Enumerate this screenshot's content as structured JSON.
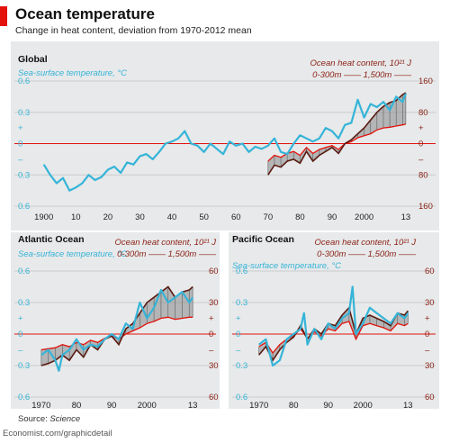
{
  "header": {
    "title": "Ocean temperature",
    "subtitle": "Change in heat content, deviation from 1970-2012 mean"
  },
  "footer": {
    "source_prefix": "Source: ",
    "source_name": "Science",
    "site": "Economist.com/graphicdetail"
  },
  "colors": {
    "accent": "#e3120b",
    "sst_line": "#35b4d8",
    "ohc_1500": "#5a1b12",
    "ohc_300": "#e3120b",
    "band_fill": "#8a8a8a",
    "panel_bg": "#e7e9ea"
  },
  "chart_data": [
    {
      "type": "line",
      "panel_title": "Global",
      "sst_label": "Sea-surface temperature, °C",
      "ohc_label_line1": "Ocean heat content, 10²¹ J",
      "ohc_label_line2a": "0-300m",
      "ohc_label_line2b": "1,500m",
      "xlim": [
        1897,
        2015
      ],
      "ylim_left": [
        -0.6,
        0.6
      ],
      "ylim_right": [
        -160,
        160
      ],
      "left_ticks": [
        "0.6",
        "0.3",
        "+",
        "0",
        "–",
        "0.3",
        "0.6"
      ],
      "right_ticks": [
        "160",
        "80",
        "+",
        "0",
        "–",
        "80",
        "160"
      ],
      "x_ticks": [
        "1900",
        "10",
        "20",
        "30",
        "40",
        "50",
        "60",
        "70",
        "80",
        "90",
        "2000",
        "13"
      ],
      "x_tick_values": [
        1900,
        1910,
        1920,
        1930,
        1940,
        1950,
        1960,
        1970,
        1980,
        1990,
        2000,
        2013
      ],
      "series": [
        {
          "name": "Sea-surface temperature",
          "axis": "left",
          "x": [
            1900,
            1902,
            1904,
            1906,
            1908,
            1910,
            1912,
            1914,
            1916,
            1918,
            1920,
            1922,
            1924,
            1926,
            1928,
            1930,
            1932,
            1934,
            1936,
            1938,
            1940,
            1942,
            1944,
            1946,
            1948,
            1950,
            1952,
            1954,
            1956,
            1958,
            1960,
            1962,
            1964,
            1966,
            1968,
            1970,
            1972,
            1974,
            1976,
            1978,
            1980,
            1982,
            1984,
            1986,
            1988,
            1990,
            1992,
            1994,
            1996,
            1998,
            2000,
            2002,
            2004,
            2006,
            2008,
            2010,
            2012,
            2013
          ],
          "values": [
            -0.2,
            -0.3,
            -0.38,
            -0.33,
            -0.45,
            -0.42,
            -0.38,
            -0.3,
            -0.35,
            -0.32,
            -0.25,
            -0.22,
            -0.28,
            -0.18,
            -0.2,
            -0.12,
            -0.1,
            -0.15,
            -0.08,
            0.0,
            0.02,
            0.05,
            0.12,
            0.0,
            -0.02,
            -0.08,
            0.0,
            -0.05,
            -0.1,
            0.02,
            -0.02,
            0.0,
            -0.08,
            -0.03,
            -0.05,
            -0.02,
            0.05,
            -0.08,
            -0.1,
            0.0,
            0.08,
            0.05,
            0.02,
            0.05,
            0.15,
            0.12,
            0.05,
            0.18,
            0.2,
            0.42,
            0.25,
            0.38,
            0.35,
            0.4,
            0.32,
            0.45,
            0.4,
            0.48
          ]
        },
        {
          "name": "0-300m",
          "axis": "right",
          "x": [
            1970,
            1972,
            1974,
            1976,
            1978,
            1980,
            1982,
            1984,
            1986,
            1988,
            1990,
            1992,
            1994,
            1996,
            1998,
            2000,
            2002,
            2004,
            2006,
            2008,
            2010,
            2012,
            2013
          ],
          "values": [
            -45,
            -30,
            -35,
            -25,
            -20,
            -30,
            -10,
            -25,
            -15,
            -10,
            -5,
            -15,
            0,
            5,
            15,
            20,
            25,
            35,
            40,
            42,
            45,
            48,
            50
          ]
        },
        {
          "name": "1,500m",
          "axis": "right",
          "x": [
            1970,
            1972,
            1974,
            1976,
            1978,
            1980,
            1982,
            1984,
            1986,
            1988,
            1990,
            1992,
            1994,
            1996,
            1998,
            2000,
            2002,
            2004,
            2006,
            2008,
            2010,
            2012,
            2013
          ],
          "values": [
            -80,
            -55,
            -60,
            -45,
            -40,
            -50,
            -20,
            -45,
            -30,
            -20,
            -10,
            -25,
            0,
            10,
            25,
            40,
            60,
            80,
            95,
            105,
            110,
            125,
            130
          ]
        }
      ]
    },
    {
      "type": "line",
      "panel_title": "Atlantic Ocean",
      "sst_label": "Sea-surface temperature, °C",
      "ohc_label_line1": "Ocean heat content, 10²¹ J",
      "ohc_label_line2a": "0-300m",
      "ohc_label_line2b": "1,500m",
      "xlim": [
        1968,
        2015
      ],
      "ylim_left": [
        -0.6,
        0.6
      ],
      "ylim_right": [
        -60,
        60
      ],
      "left_ticks": [
        "0.6",
        "0.3",
        "+",
        "0",
        "–",
        "0.3",
        "0.6"
      ],
      "right_ticks": [
        "60",
        "30",
        "+",
        "0",
        "–",
        "30",
        "60"
      ],
      "x_ticks": [
        "1970",
        "80",
        "90",
        "2000",
        "13"
      ],
      "x_tick_values": [
        1970,
        1980,
        1990,
        2000,
        2013
      ],
      "series": [
        {
          "name": "Sea-surface temperature",
          "axis": "left",
          "x": [
            1970,
            1972,
            1974,
            1975,
            1976,
            1978,
            1980,
            1982,
            1984,
            1986,
            1988,
            1990,
            1992,
            1994,
            1996,
            1998,
            2000,
            2002,
            2004,
            2006,
            2008,
            2010,
            2012,
            2013
          ],
          "values": [
            -0.2,
            -0.15,
            -0.25,
            -0.35,
            -0.2,
            -0.15,
            -0.05,
            -0.15,
            -0.1,
            -0.12,
            -0.05,
            0.0,
            -0.05,
            0.1,
            0.05,
            0.3,
            0.15,
            0.25,
            0.42,
            0.3,
            0.35,
            0.4,
            0.3,
            0.35
          ]
        },
        {
          "name": "0-300m",
          "axis": "right",
          "x": [
            1970,
            1972,
            1974,
            1976,
            1978,
            1980,
            1982,
            1984,
            1986,
            1988,
            1990,
            1992,
            1994,
            1996,
            1998,
            2000,
            2002,
            2004,
            2006,
            2008,
            2010,
            2012,
            2013
          ],
          "values": [
            -15,
            -14,
            -13,
            -10,
            -12,
            -8,
            -10,
            -6,
            -8,
            -4,
            -2,
            -5,
            0,
            3,
            6,
            10,
            12,
            15,
            16,
            14,
            15,
            16,
            16
          ]
        },
        {
          "name": "1,500m",
          "axis": "right",
          "x": [
            1970,
            1972,
            1974,
            1976,
            1978,
            1980,
            1982,
            1984,
            1986,
            1988,
            1990,
            1992,
            1994,
            1996,
            1998,
            2000,
            2002,
            2004,
            2006,
            2008,
            2010,
            2012,
            2013
          ],
          "values": [
            -30,
            -28,
            -25,
            -20,
            -25,
            -15,
            -22,
            -10,
            -15,
            -5,
            -2,
            -10,
            5,
            10,
            20,
            30,
            35,
            40,
            45,
            35,
            40,
            42,
            45
          ]
        }
      ]
    },
    {
      "type": "line",
      "panel_title": "Pacific Ocean",
      "sst_label": "Sea-surface temperature, °C",
      "ohc_label_line1": "Ocean heat content, 10²¹ J",
      "ohc_label_line2a": "0-300m",
      "ohc_label_line2b": "1,500m",
      "xlim": [
        1968,
        2015
      ],
      "ylim_left": [
        -0.6,
        0.6
      ],
      "ylim_right": [
        -60,
        60
      ],
      "left_ticks": [
        "0.6",
        "0.3",
        "+",
        "0",
        "–",
        "0.3",
        "0.6"
      ],
      "right_ticks": [
        "60",
        "30",
        "+",
        "0",
        "–",
        "30",
        "60"
      ],
      "x_ticks": [
        "1970",
        "80",
        "90",
        "2000",
        "13"
      ],
      "x_tick_values": [
        1970,
        1980,
        1990,
        2000,
        2013
      ],
      "series": [
        {
          "name": "Sea-surface temperature",
          "axis": "left",
          "x": [
            1970,
            1972,
            1974,
            1976,
            1978,
            1980,
            1982,
            1983,
            1984,
            1986,
            1988,
            1990,
            1992,
            1994,
            1996,
            1997,
            1998,
            2000,
            2002,
            2004,
            2006,
            2008,
            2010,
            2012,
            2013
          ],
          "values": [
            -0.1,
            -0.05,
            -0.3,
            -0.25,
            -0.05,
            0.0,
            0.05,
            0.2,
            -0.1,
            0.05,
            -0.05,
            0.1,
            0.05,
            0.15,
            0.2,
            0.45,
            0.0,
            0.1,
            0.25,
            0.2,
            0.15,
            0.1,
            0.2,
            0.15,
            0.2
          ]
        },
        {
          "name": "0-300m",
          "axis": "right",
          "x": [
            1970,
            1972,
            1974,
            1976,
            1978,
            1980,
            1982,
            1984,
            1986,
            1988,
            1990,
            1992,
            1994,
            1996,
            1998,
            2000,
            2002,
            2004,
            2006,
            2008,
            2010,
            2012,
            2013
          ],
          "values": [
            -12,
            -8,
            -18,
            -10,
            -5,
            -2,
            5,
            -4,
            2,
            -2,
            5,
            3,
            10,
            12,
            -5,
            8,
            10,
            8,
            6,
            3,
            10,
            8,
            10
          ]
        },
        {
          "name": "1,500m",
          "axis": "right",
          "x": [
            1970,
            1972,
            1974,
            1976,
            1978,
            1980,
            1982,
            1984,
            1986,
            1988,
            1990,
            1992,
            1994,
            1996,
            1998,
            2000,
            2002,
            2004,
            2006,
            2008,
            2010,
            2012,
            2013
          ],
          "values": [
            -20,
            -12,
            -25,
            -15,
            -8,
            -3,
            8,
            -5,
            5,
            0,
            10,
            8,
            18,
            25,
            0,
            15,
            18,
            15,
            12,
            8,
            20,
            18,
            22
          ]
        }
      ]
    }
  ]
}
